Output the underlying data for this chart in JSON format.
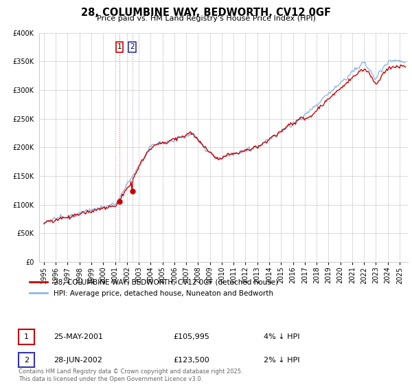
{
  "title": "28, COLUMBINE WAY, BEDWORTH, CV12 0GF",
  "subtitle": "Price paid vs. HM Land Registry's House Price Index (HPI)",
  "ylim": [
    0,
    400000
  ],
  "yticks": [
    0,
    50000,
    100000,
    150000,
    200000,
    250000,
    300000,
    350000,
    400000
  ],
  "hpi_color": "#8BB8E8",
  "price_color": "#CC0000",
  "vline1_color": "#CC4444",
  "vline2_color": "#8888CC",
  "legend_label_red": "28, COLUMBINE WAY, BEDWORTH, CV12 0GF (detached house)",
  "legend_label_blue": "HPI: Average price, detached house, Nuneaton and Bedworth",
  "transaction1_date": "25-MAY-2001",
  "transaction1_price": "£105,995",
  "transaction1_hpi": "4% ↓ HPI",
  "transaction2_date": "28-JUN-2002",
  "transaction2_price": "£123,500",
  "transaction2_hpi": "2% ↓ HPI",
  "footer": "Contains HM Land Registry data © Crown copyright and database right 2025.\nThis data is licensed under the Open Government Licence v3.0.",
  "background_color": "#FFFFFF",
  "plot_bg_color": "#FFFFFF",
  "grid_color": "#CCCCCC",
  "box1_color": "#CC0000",
  "box2_color": "#3333AA"
}
